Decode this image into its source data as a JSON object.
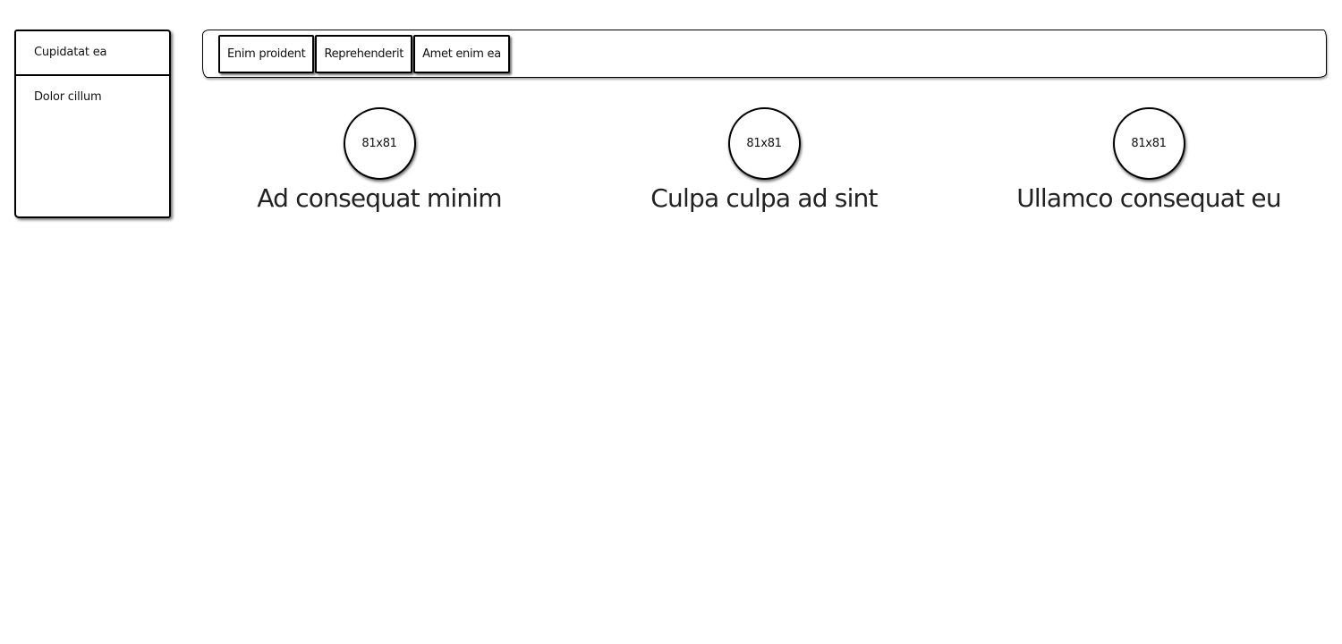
{
  "sidebar": {
    "items": [
      {
        "label": "Cupidatat ea"
      },
      {
        "label": "Dolor cillum"
      }
    ]
  },
  "tabs": [
    {
      "label": "Enim proident"
    },
    {
      "label": "Reprehenderit"
    },
    {
      "label": "Amet enim ea"
    }
  ],
  "features": [
    {
      "image_label": "81x81",
      "title": "Ad consequat minim"
    },
    {
      "image_label": "81x81",
      "title": "Culpa culpa ad sint"
    },
    {
      "image_label": "81x81",
      "title": "Ullamco consequat eu"
    }
  ]
}
